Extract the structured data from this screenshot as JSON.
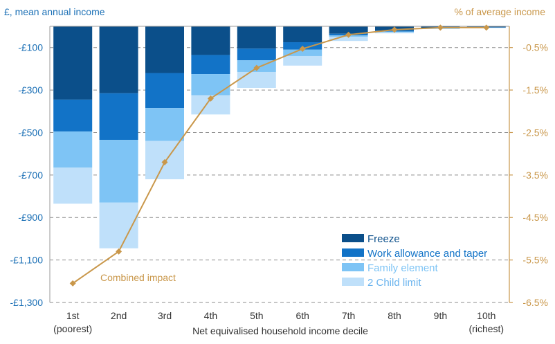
{
  "chart_data": {
    "type": "bar",
    "stacked": true,
    "categories": [
      "1st",
      "2nd",
      "3rd",
      "4th",
      "5th",
      "6th",
      "7th",
      "8th",
      "9th",
      "10th"
    ],
    "category_sublabels": [
      "(poorest)",
      "",
      "",
      "",
      "",
      "",
      "",
      "",
      "",
      "(richest)"
    ],
    "xlabel": "Net equivalised household income decile",
    "ylabel_left": "£, mean annual income",
    "ylabel_right": "% of average income",
    "ylim_left": [
      -1300,
      0
    ],
    "ylim_right": [
      -6.5,
      0
    ],
    "yticks_left": [
      "-£100",
      "-£300",
      "-£500",
      "-£700",
      "-£900",
      "-£1,100",
      "-£1,300"
    ],
    "yticks_left_values": [
      -100,
      -300,
      -500,
      -700,
      -900,
      -1100,
      -1300
    ],
    "yticks_right": [
      "-0.5%",
      "-1.5%",
      "-2.5%",
      "-3.5%",
      "-4.5%",
      "-5.5%",
      "-6.5%"
    ],
    "yticks_right_values": [
      -0.5,
      -1.5,
      -2.5,
      -3.5,
      -4.5,
      -5.5,
      -6.5
    ],
    "grid": "horizontal dashed",
    "legend_position": "bottom-right",
    "series": [
      {
        "name": "Freeze",
        "color": "#0b4f8a",
        "values": [
          -345,
          -315,
          -220,
          -135,
          -105,
          -75,
          -35,
          -20,
          -8,
          -5
        ]
      },
      {
        "name": "Work allowance and taper",
        "color": "#1273c7",
        "values": [
          -150,
          -220,
          -165,
          -90,
          -55,
          -35,
          -8,
          -5,
          -2,
          -1
        ]
      },
      {
        "name": "Family element",
        "color": "#7ec4f5",
        "values": [
          -170,
          -295,
          -155,
          -100,
          -55,
          -30,
          -6,
          -3,
          -1,
          -1
        ]
      },
      {
        "name": "2 Child limit",
        "color": "#bfe0fa",
        "values": [
          -170,
          -215,
          -180,
          -90,
          -75,
          -45,
          -20,
          -5,
          -2,
          -1
        ]
      }
    ],
    "line_series": {
      "name": "Combined impact",
      "axis": "right",
      "color": "#c9974a",
      "values": [
        -6.05,
        -5.3,
        -3.2,
        -1.7,
        -0.98,
        -0.53,
        -0.2,
        -0.08,
        -0.03,
        -0.03
      ]
    }
  }
}
